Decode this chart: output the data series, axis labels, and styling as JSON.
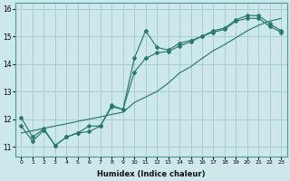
{
  "xlabel": "Humidex (Indice chaleur)",
  "bg_color": "#cce8eb",
  "line_color": "#2a7a6a",
  "grid_color": "#aacdd2",
  "xlim": [
    -0.5,
    23.5
  ],
  "ylim": [
    10.65,
    16.2
  ],
  "xticks": [
    0,
    1,
    2,
    3,
    4,
    5,
    6,
    7,
    8,
    9,
    10,
    11,
    12,
    13,
    14,
    15,
    16,
    17,
    18,
    19,
    20,
    21,
    22,
    23
  ],
  "yticks": [
    11,
    12,
    13,
    14,
    15,
    16
  ],
  "line1_x": [
    0,
    1,
    2,
    3,
    4,
    5,
    6,
    7,
    8,
    9,
    10,
    11,
    12,
    13,
    14,
    15,
    16,
    17,
    18,
    19,
    20,
    21,
    22,
    23
  ],
  "line1_y": [
    12.05,
    11.35,
    11.65,
    11.05,
    11.35,
    11.5,
    11.55,
    11.75,
    12.45,
    12.35,
    14.2,
    15.2,
    14.6,
    14.5,
    14.75,
    14.85,
    15.0,
    15.2,
    15.3,
    15.6,
    15.75,
    15.75,
    15.45,
    15.2
  ],
  "line2_x": [
    0,
    1,
    2,
    3,
    4,
    5,
    6,
    7,
    8,
    9,
    10,
    11,
    12,
    13,
    14,
    15,
    16,
    17,
    18,
    19,
    20,
    21,
    22,
    23
  ],
  "line2_y": [
    11.75,
    11.2,
    11.6,
    11.05,
    11.35,
    11.5,
    11.75,
    11.75,
    12.5,
    12.35,
    13.7,
    14.2,
    14.4,
    14.45,
    14.65,
    14.8,
    15.0,
    15.15,
    15.25,
    15.55,
    15.65,
    15.65,
    15.35,
    15.15
  ],
  "line3_x": [
    0,
    1,
    2,
    3,
    4,
    5,
    6,
    7,
    8,
    9,
    10,
    11,
    12,
    13,
    14,
    15,
    16,
    17,
    18,
    19,
    20,
    21,
    22,
    23
  ],
  "line3_y": [
    11.5,
    11.58,
    11.67,
    11.75,
    11.83,
    11.92,
    12.0,
    12.08,
    12.17,
    12.25,
    12.6,
    12.8,
    13.0,
    13.3,
    13.67,
    13.9,
    14.2,
    14.48,
    14.7,
    14.95,
    15.2,
    15.4,
    15.55,
    15.65
  ]
}
